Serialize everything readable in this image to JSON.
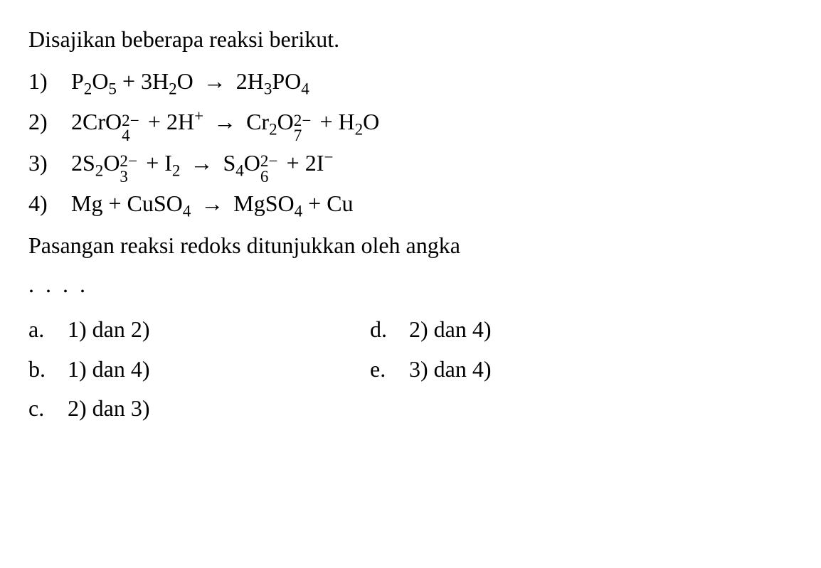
{
  "intro": "Disajikan beberapa reaksi berikut.",
  "reactions": [
    {
      "num": "1)",
      "eq_html": "P<sub>2</sub>O<sub>5</sub> + 3H<sub>2</sub>O <span class='arrow'>→</span> 2H<sub>3</sub>PO<sub>4</sub>"
    },
    {
      "num": "2)",
      "eq_html": "2CrO<span class='subsup'><sub>4</sub><sup>2−</sup></span> + 2H<sup>+</sup> <span class='arrow'>→</span> Cr<sub>2</sub>O<span class='subsup'><sub>7</sub><sup>2−</sup></span> + H<sub>2</sub>O"
    },
    {
      "num": "3)",
      "eq_html": "2S<sub>2</sub>O<span class='subsup'><sub>3</sub><sup>2−</sup></span> + I<sub>2</sub> <span class='arrow'>→</span> S<sub>4</sub>O<span class='subsup'><sub>6</sub><sup>2−</sup></span> + 2I<sup>−</sup>"
    },
    {
      "num": "4)",
      "eq_html": "Mg + CuSO<sub>4</sub> <span class='arrow'>→</span> MgSO<sub>4</sub> + Cu"
    }
  ],
  "question": "Pasangan reaksi redoks ditunjukkan oleh angka",
  "dots": ". . . .",
  "options_left": [
    {
      "label": "a.",
      "text": "1) dan 2)"
    },
    {
      "label": "b.",
      "text": "1) dan 4)"
    },
    {
      "label": "c.",
      "text": "2) dan 3)"
    }
  ],
  "options_right": [
    {
      "label": "d.",
      "text": "2) dan 4)"
    },
    {
      "label": "e.",
      "text": "3) dan 4)"
    }
  ],
  "colors": {
    "text": "#000000",
    "background": "#ffffff"
  },
  "font": {
    "family": "Times New Roman",
    "size_pt": 24
  }
}
